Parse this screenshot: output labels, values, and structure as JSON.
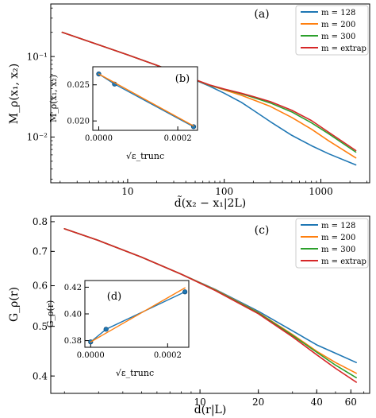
{
  "colors": {
    "m128": "#1f77b4",
    "m200": "#ff7f0e",
    "m300": "#2ca02c",
    "extrap": "#d62728"
  },
  "chart_data": [
    {
      "id": "a",
      "type": "line",
      "panel_label": "(a)",
      "xscale": "log",
      "yscale": "log",
      "xlim": [
        1.6,
        3200
      ],
      "ylim": [
        0.0027,
        0.45
      ],
      "xlabel": "d̃(x₂ − x₁|2L)",
      "ylabel": "M_ρ(x₁, x₂)",
      "xticks": [
        {
          "v": 10,
          "label": "10"
        },
        {
          "v": 100,
          "label": "100"
        },
        {
          "v": 1000,
          "label": "1000"
        }
      ],
      "yticks": [
        {
          "v": 0.01,
          "label": "10⁻²"
        },
        {
          "v": 0.1,
          "label": "10⁻¹"
        }
      ],
      "legend_position": "top-right",
      "series": [
        {
          "name": "m = 128",
          "color_key": "m128",
          "x": [
            2.1,
            5,
            10,
            20,
            40,
            70,
            100,
            150,
            200,
            300,
            500,
            800,
            1200,
            2300
          ],
          "y": [
            0.2,
            0.14,
            0.105,
            0.078,
            0.057,
            0.043,
            0.035,
            0.027,
            0.0215,
            0.0155,
            0.0105,
            0.0078,
            0.0062,
            0.0045
          ]
        },
        {
          "name": "m = 200",
          "color_key": "m200",
          "x": [
            2.1,
            5,
            10,
            20,
            40,
            70,
            100,
            150,
            200,
            300,
            500,
            800,
            1200,
            2300
          ],
          "y": [
            0.2,
            0.14,
            0.105,
            0.078,
            0.057,
            0.044,
            0.0385,
            0.033,
            0.029,
            0.024,
            0.0175,
            0.0125,
            0.009,
            0.0055
          ]
        },
        {
          "name": "m = 300",
          "color_key": "m300",
          "x": [
            2.1,
            5,
            10,
            20,
            40,
            70,
            100,
            150,
            200,
            300,
            500,
            800,
            1200,
            2300
          ],
          "y": [
            0.2,
            0.14,
            0.105,
            0.078,
            0.057,
            0.0442,
            0.0392,
            0.0345,
            0.031,
            0.0265,
            0.0205,
            0.015,
            0.011,
            0.0065
          ]
        },
        {
          "name": "m = extrap",
          "color_key": "extrap",
          "x": [
            2.1,
            5,
            10,
            20,
            40,
            70,
            100,
            150,
            200,
            300,
            500,
            800,
            1200,
            2300
          ],
          "y": [
            0.2,
            0.14,
            0.105,
            0.078,
            0.057,
            0.0445,
            0.0395,
            0.035,
            0.0318,
            0.0275,
            0.0215,
            0.016,
            0.0115,
            0.0068
          ]
        }
      ]
    },
    {
      "id": "b",
      "type": "line",
      "panel_label": "(b)",
      "inset": true,
      "xlim": [
        -1.5e-05,
        0.00025
      ],
      "ylim": [
        0.0187,
        0.0275
      ],
      "xlabel": "√ε_trunc",
      "ylabel": "M_ρ(x₁, x₂)",
      "xticks": [
        {
          "v": 0.0,
          "label": "0.0000"
        },
        {
          "v": 0.0002,
          "label": "0.0002"
        }
      ],
      "yticks": [
        {
          "v": 0.02,
          "label": "0.020"
        },
        {
          "v": 0.025,
          "label": "0.025"
        }
      ],
      "series": [
        {
          "name": "data",
          "color_key": "m128",
          "markers": true,
          "x": [
            0.0,
            4e-05,
            0.00024
          ],
          "y": [
            0.0265,
            0.0251,
            0.0192
          ]
        },
        {
          "name": "fit",
          "color_key": "m200",
          "markers": false,
          "x": [
            0.0,
            0.00024
          ],
          "y": [
            0.0265,
            0.0193
          ]
        }
      ]
    },
    {
      "id": "c",
      "type": "line",
      "panel_label": "(c)",
      "xscale": "log",
      "yscale": "log",
      "xlim": [
        1.7,
        75
      ],
      "ylim": [
        0.37,
        0.82
      ],
      "xlabel": "d(r|L)",
      "ylabel": "G_ρ(r)",
      "xticks": [
        {
          "v": 10,
          "label": "10"
        },
        {
          "v": 20,
          "label": "20"
        },
        {
          "v": 40,
          "label": "40"
        },
        {
          "v": 60,
          "label": "60"
        }
      ],
      "yticks": [
        {
          "v": 0.4,
          "label": "0.4"
        },
        {
          "v": 0.5,
          "label": "0.5"
        },
        {
          "v": 0.6,
          "label": "0.6"
        },
        {
          "v": 0.7,
          "label": "0.7"
        },
        {
          "v": 0.8,
          "label": "0.8"
        }
      ],
      "legend_position": "top-right",
      "series": [
        {
          "name": "m = 128",
          "color_key": "m128",
          "x": [
            2,
            3,
            5,
            8,
            12,
            20,
            30,
            40,
            50,
            64
          ],
          "y": [
            0.775,
            0.735,
            0.682,
            0.632,
            0.59,
            0.535,
            0.49,
            0.46,
            0.443,
            0.425
          ]
        },
        {
          "name": "m = 200",
          "color_key": "m200",
          "x": [
            2,
            3,
            5,
            8,
            12,
            20,
            30,
            40,
            50,
            64
          ],
          "y": [
            0.775,
            0.735,
            0.682,
            0.632,
            0.589,
            0.532,
            0.482,
            0.447,
            0.425,
            0.405
          ]
        },
        {
          "name": "m = 300",
          "color_key": "m300",
          "x": [
            2,
            3,
            5,
            8,
            12,
            20,
            30,
            40,
            50,
            64
          ],
          "y": [
            0.775,
            0.735,
            0.682,
            0.632,
            0.588,
            0.531,
            0.48,
            0.445,
            0.42,
            0.397
          ]
        },
        {
          "name": "m = extrap",
          "color_key": "extrap",
          "x": [
            2,
            3,
            5,
            8,
            12,
            20,
            30,
            40,
            50,
            64
          ],
          "y": [
            0.775,
            0.735,
            0.682,
            0.632,
            0.587,
            0.529,
            0.477,
            0.44,
            0.414,
            0.389
          ]
        }
      ]
    },
    {
      "id": "d",
      "type": "line",
      "panel_label": "(d)",
      "inset": true,
      "xlim": [
        -1.5e-05,
        0.000255
      ],
      "ylim": [
        0.375,
        0.425
      ],
      "xlabel": "√ε_trunc",
      "ylabel": "G_ρ(r)",
      "xticks": [
        {
          "v": 0.0,
          "label": "0.0000"
        },
        {
          "v": 0.0002,
          "label": "0.0002"
        }
      ],
      "yticks": [
        {
          "v": 0.38,
          "label": "0.38"
        },
        {
          "v": 0.4,
          "label": "0.40"
        },
        {
          "v": 0.42,
          "label": "0.42"
        }
      ],
      "series": [
        {
          "name": "data",
          "color_key": "m128",
          "markers": true,
          "x": [
            0.0,
            4e-05,
            0.000245
          ],
          "y": [
            0.379,
            0.3885,
            0.4165
          ]
        },
        {
          "name": "fit",
          "color_key": "m200",
          "markers": false,
          "x": [
            0.0,
            0.000245
          ],
          "y": [
            0.379,
            0.4195
          ]
        }
      ]
    }
  ]
}
